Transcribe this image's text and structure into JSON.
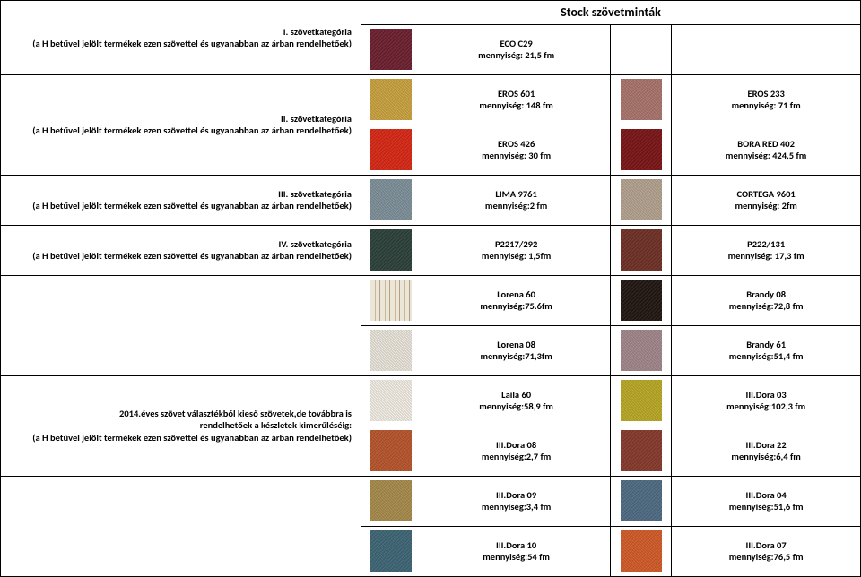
{
  "title": "Stock szövetminták",
  "col_widths": {
    "cat": 332,
    "sw": 56,
    "txt": 174
  },
  "cat_note": "(a H betűvel jelölt termékek ezen szövettel és ugyanabban az árban rendelhetőek)",
  "categories": {
    "c1": "I. szövetkategória",
    "c2": "II. szövetkategória",
    "c3": "III. szövetkategória",
    "c4": "IV. szövetkategória",
    "c5_l1": "2014.éves szövet választékból kieső szövetek,de továbbra is",
    "c5_l2": "rendelhetőek a készletek kimerűléséig:"
  },
  "rows": [
    {
      "cat": "c1",
      "sw1": "#6b1e2e",
      "t1a": "ECO C29",
      "t1b": "mennyiség: 21,5 fm",
      "sw2": null,
      "t2a": "",
      "t2b": ""
    },
    {
      "cat": "c2",
      "rowspan": 2,
      "sw1": "#c9a23e",
      "t1a": "EROS 601",
      "t1b": "mennyiség: 148 fm",
      "sw2": "#a8736b",
      "t2a": "EROS 233",
      "t2b": "mennyiség: 71 fm"
    },
    {
      "sw1": "#d82612",
      "t1a": "EROS 426",
      "t1b": "mennyiség: 30 fm",
      "sw2": "#7a1315",
      "t2a": "BORA RED 402",
      "t2b": "mennyiség: 424,5 fm"
    },
    {
      "cat": "c3",
      "sw1": "#7d8f99",
      "t1a": "LIMA 9761",
      "t1b": "mennyiség:2 fm",
      "sw2": "#b2a28e",
      "t2a": "CORTEGA 9601",
      "t2b": "mennyiség: 2fm"
    },
    {
      "cat": "c4",
      "sw1": "#2a4038",
      "t1a": "P2217/292",
      "t1b": "mennyiség: 1,5fm",
      "sw2": "#6e2f24",
      "t2a": "P222/131",
      "t2b": "mennyiség: 17,3 fm"
    },
    {
      "cat": null,
      "rowspan": 2,
      "sw1": "#ece6d8",
      "stripe1": true,
      "t1a": "Lorena 60",
      "t1b": "mennyiség:75.6fm",
      "sw2": "#201510",
      "t2a": "Brandy 08",
      "t2b": "mennyiség:72,8 fm"
    },
    {
      "sw1": "#e9e4da",
      "t1a": "Lorena 08",
      "t1b": "mennyiség:71,3fm",
      "sw2": "#a0868a",
      "t2a": "Brandy 61",
      "t2b": "mennyiség:51,4 fm"
    },
    {
      "cat": "c5",
      "rowspan": 2,
      "sw1": "#f1ede4",
      "t1a": "Laila 60",
      "t1b": "mennyiség:58,9 fm",
      "sw2": "#b8a823",
      "t2a": "III.Dora 03",
      "t2b": "mennyiség:102,3 fm"
    },
    {
      "sw1": "#b7542a",
      "t1a": "III.Dora 08",
      "t1b": "mennyiség:2,7 fm",
      "sw2": "#87382a",
      "t2a": "III.Dora 22",
      "t2b": "mennyiség:6,4 fm"
    },
    {
      "cat": null,
      "rowspan": 2,
      "sw1": "#a68a4a",
      "t1a": "III.Dora 09",
      "t1b": "mennyiség:3,4 fm",
      "sw2": "#4d6a82",
      "t2a": "III.Dora 04",
      "t2b": "mennyiség:51,6 fm"
    },
    {
      "sw1": "#3d6574",
      "t1a": "III.Dora 10",
      "t1b": "mennyiség:54 fm",
      "sw2": "#d25a27",
      "t2a": "III.Dora 07",
      "t2b": "mennyiség:76,5 fm"
    }
  ]
}
